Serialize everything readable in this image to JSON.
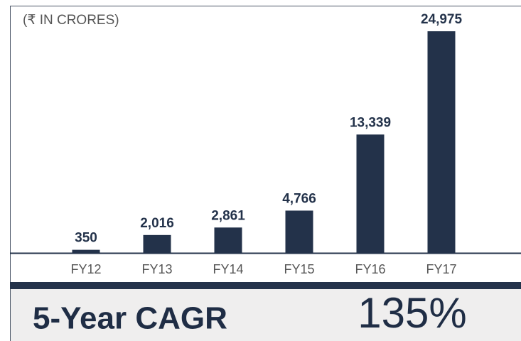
{
  "chart_data": {
    "type": "bar",
    "subtitle": "(₹ IN CRORES)",
    "categories": [
      "FY12",
      "FY13",
      "FY14",
      "FY15",
      "FY16",
      "FY17"
    ],
    "values": [
      350,
      2016,
      2861,
      4766,
      13339,
      24975
    ],
    "value_labels": [
      "350",
      "2,016",
      "2,861",
      "4,766",
      "13,339",
      "24,975"
    ],
    "color": "#23324a",
    "footer": {
      "label": "5-Year CAGR",
      "value": "135%"
    }
  }
}
